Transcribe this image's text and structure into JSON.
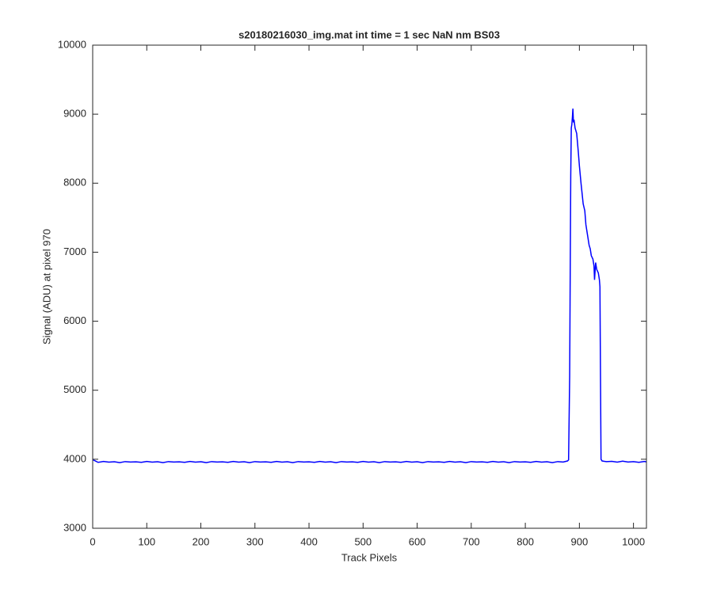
{
  "chart_data": {
    "type": "line",
    "title": "s20180216030_img.mat int time = 1 sec  NaN nm BS03",
    "xlabel": "Track Pixels",
    "ylabel": "Signal (ADU) at pixel 970",
    "color": "#0000ff",
    "xlim": [
      0,
      1024
    ],
    "ylim": [
      3000,
      10000
    ],
    "xticks": [
      0,
      100,
      200,
      300,
      400,
      500,
      600,
      700,
      800,
      900,
      1000
    ],
    "yticks": [
      3000,
      4000,
      5000,
      6000,
      7000,
      8000,
      9000,
      10000
    ],
    "x": [
      1,
      10,
      20,
      30,
      40,
      50,
      60,
      70,
      80,
      90,
      100,
      110,
      120,
      130,
      140,
      150,
      160,
      170,
      180,
      190,
      200,
      210,
      220,
      230,
      240,
      250,
      260,
      270,
      280,
      290,
      300,
      310,
      320,
      330,
      340,
      350,
      360,
      370,
      380,
      390,
      400,
      410,
      420,
      430,
      440,
      450,
      460,
      470,
      480,
      490,
      500,
      510,
      520,
      530,
      540,
      550,
      560,
      570,
      580,
      590,
      600,
      610,
      620,
      630,
      640,
      650,
      660,
      670,
      680,
      690,
      700,
      710,
      720,
      730,
      740,
      750,
      760,
      770,
      780,
      790,
      800,
      810,
      820,
      830,
      840,
      850,
      860,
      870,
      878,
      880,
      882,
      884,
      885,
      886,
      887,
      888,
      889,
      890,
      892,
      895,
      898,
      900,
      903,
      905,
      907,
      910,
      912,
      915,
      918,
      920,
      922,
      925,
      927,
      928,
      930,
      932,
      935,
      937,
      938,
      939,
      940,
      942,
      950,
      960,
      970,
      980,
      990,
      1000,
      1010,
      1020,
      1024
    ],
    "values": [
      3990,
      3955,
      3968,
      3958,
      3964,
      3951,
      3966,
      3960,
      3962,
      3955,
      3968,
      3958,
      3964,
      3951,
      3966,
      3960,
      3962,
      3955,
      3968,
      3958,
      3964,
      3951,
      3966,
      3960,
      3962,
      3955,
      3968,
      3958,
      3964,
      3951,
      3966,
      3960,
      3962,
      3955,
      3968,
      3958,
      3964,
      3951,
      3966,
      3960,
      3962,
      3955,
      3968,
      3958,
      3964,
      3951,
      3966,
      3960,
      3962,
      3955,
      3968,
      3958,
      3964,
      3951,
      3966,
      3960,
      3962,
      3955,
      3968,
      3958,
      3964,
      3951,
      3966,
      3960,
      3962,
      3955,
      3968,
      3958,
      3964,
      3951,
      3966,
      3960,
      3962,
      3955,
      3968,
      3958,
      3964,
      3951,
      3966,
      3960,
      3962,
      3955,
      3968,
      3958,
      3964,
      3951,
      3966,
      3960,
      3975,
      3990,
      5200,
      8100,
      8800,
      8850,
      8950,
      9080,
      8880,
      8920,
      8800,
      8720,
      8450,
      8250,
      8000,
      7850,
      7700,
      7600,
      7400,
      7250,
      7100,
      7050,
      6950,
      6900,
      6800,
      6600,
      6850,
      6750,
      6700,
      6600,
      6500,
      5200,
      4000,
      3975,
      3965,
      3970,
      3958,
      3972,
      3960,
      3966,
      3955,
      3968,
      3962
    ]
  }
}
